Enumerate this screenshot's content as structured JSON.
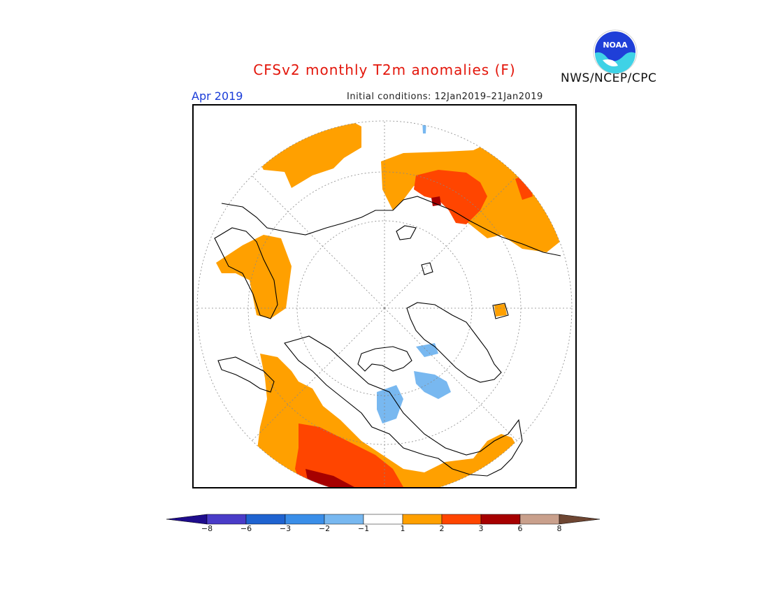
{
  "title": "CFSv2 monthly T2m anomalies (F)",
  "month": "Apr 2019",
  "initial_conditions": "Initial conditions: 12Jan2019–21Jan2019",
  "agency": "NWS/NCEP/CPC",
  "logo_text": "NOAA",
  "colorbar": {
    "colors": [
      "#1e0c8c",
      "#4a3cc8",
      "#1f63d0",
      "#3a8ee8",
      "#78b8f0",
      "#ffffff",
      "#ffa000",
      "#ff4500",
      "#a60000",
      "#c9a08c",
      "#6e4632"
    ],
    "tick_labels": [
      "−8",
      "−6",
      "−3",
      "−2",
      "−1",
      "1",
      "2",
      "3",
      "6",
      "8"
    ]
  }
}
